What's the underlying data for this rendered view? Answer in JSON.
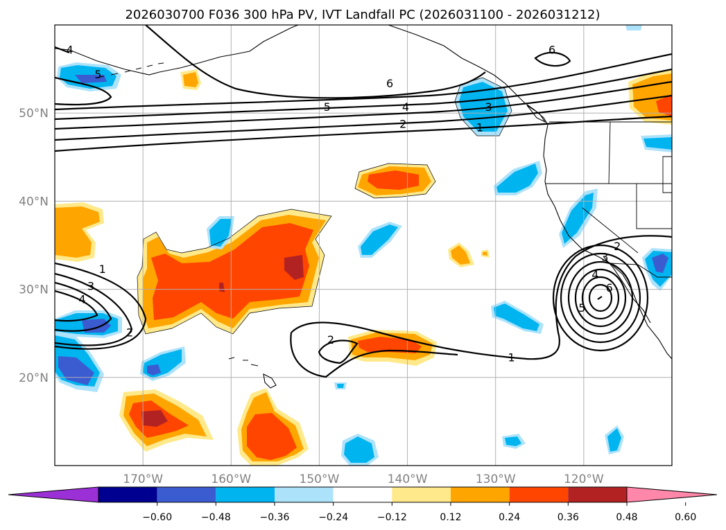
{
  "title": "2026030700 F036 300 hPa PV, IVT Landfall PC (2026031100 - 2026031212)",
  "map": {
    "lon_range": [
      -180,
      -110
    ],
    "lat_range": [
      10,
      60
    ],
    "lon_ticks": [
      {
        "value": -170,
        "label": "170°W"
      },
      {
        "value": -160,
        "label": "160°W"
      },
      {
        "value": -150,
        "label": "150°W"
      },
      {
        "value": -140,
        "label": "140°W"
      },
      {
        "value": -130,
        "label": "130°W"
      },
      {
        "value": -120,
        "label": "120°W"
      }
    ],
    "lat_ticks": [
      {
        "value": 20,
        "label": "20°N"
      },
      {
        "value": 30,
        "label": "30°N"
      },
      {
        "value": 40,
        "label": "40°N"
      },
      {
        "value": 50,
        "label": "50°N"
      }
    ],
    "grid": true,
    "pv_contour_labels": [
      {
        "text": "4",
        "lon": -178.3,
        "lat": 56.9
      },
      {
        "text": "5",
        "lon": -175.1,
        "lat": 54.1
      },
      {
        "text": "6",
        "lon": -142.0,
        "lat": 53.1
      },
      {
        "text": "5",
        "lon": -149.1,
        "lat": 50.4
      },
      {
        "text": "4",
        "lon": -140.2,
        "lat": 50.4
      },
      {
        "text": "3",
        "lon": -130.8,
        "lat": 50.4
      },
      {
        "text": "2",
        "lon": -140.5,
        "lat": 48.5
      },
      {
        "text": "1",
        "lon": -131.8,
        "lat": 48.1
      },
      {
        "text": "6",
        "lon": -123.6,
        "lat": 56.9
      },
      {
        "text": "1",
        "lon": -174.6,
        "lat": 32.0
      },
      {
        "text": "3",
        "lon": -175.9,
        "lat": 30.1
      },
      {
        "text": "4",
        "lon": -176.9,
        "lat": 28.6
      },
      {
        "text": "2",
        "lon": -171.5,
        "lat": 24.8
      },
      {
        "text": "2",
        "lon": -148.7,
        "lat": 24.0
      },
      {
        "text": "1",
        "lon": -128.2,
        "lat": 22.0
      },
      {
        "text": "2",
        "lon": -116.2,
        "lat": 34.6
      },
      {
        "text": "3",
        "lon": -117.6,
        "lat": 33.4
      },
      {
        "text": "4",
        "lon": -118.7,
        "lat": 31.4
      },
      {
        "text": "6",
        "lon": -117.1,
        "lat": 29.9
      },
      {
        "text": "5",
        "lon": -120.2,
        "lat": 27.6
      }
    ]
  },
  "colorbar": {
    "ticks": [
      "−0.60",
      "−0.48",
      "−0.36",
      "−0.24",
      "−0.12",
      "0.12",
      "0.24",
      "0.36",
      "0.48",
      "0.60"
    ],
    "colors": [
      "#9b30d6",
      "#000090",
      "#3b5bd0",
      "#00b4f0",
      "#ade2fb",
      "#ffffff",
      "#ffe98a",
      "#ffa500",
      "#ff4500",
      "#b22222",
      "#ff88aa"
    ]
  },
  "fill_colors": {
    "pos1": "#ffe98a",
    "pos2": "#ffa500",
    "pos3": "#ff4500",
    "pos4": "#b22222",
    "neg1": "#ade2fb",
    "neg2": "#00b4f0",
    "neg3": "#3b5bd0",
    "neg4": "#000090"
  }
}
